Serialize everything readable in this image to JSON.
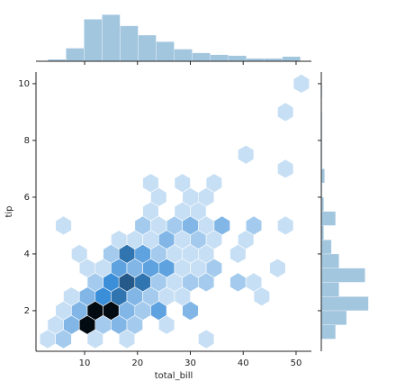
{
  "chart_data": [
    {
      "type": "hexbin",
      "xlabel": "total_bill",
      "ylabel": "tip",
      "xlim": [
        0.8,
        52.9
      ],
      "ylim": [
        0.57,
        10.41
      ],
      "xticks": [
        10,
        20,
        30,
        40,
        50
      ],
      "yticks": [
        2,
        4,
        6,
        8,
        10
      ],
      "colors": [
        "#eaf3fb",
        "#3b8ed8",
        "#020a12"
      ],
      "x": [
        51,
        48,
        40.5,
        48,
        22.5,
        28.5,
        34.5,
        24,
        30,
        33,
        22.5,
        28.5,
        31.5,
        6,
        21,
        24,
        27,
        30,
        33,
        36,
        42,
        48,
        16.5,
        19.5,
        22.5,
        25.5,
        28.5,
        31.5,
        34.5,
        40.5,
        9,
        15,
        18,
        21,
        24,
        27,
        30,
        33,
        39,
        10.5,
        13.5,
        16.5,
        19.5,
        22.5,
        25.5,
        28.5,
        31.5,
        34.5,
        46.5,
        12,
        15,
        18,
        21,
        24,
        27,
        30,
        33,
        39,
        42,
        7.5,
        10.5,
        13.5,
        16.5,
        19.5,
        22.5,
        25.5,
        28.5,
        43.5,
        6,
        9,
        12,
        15,
        18,
        21,
        24,
        30,
        4.5,
        7.5,
        10.5,
        13.5,
        16.5,
        19.5,
        25.5,
        3,
        6,
        12,
        18,
        33
      ],
      "y": [
        10,
        9,
        7.5,
        7,
        6.5,
        6.5,
        6.5,
        6,
        6,
        6,
        5.5,
        5.5,
        5.5,
        5,
        5,
        5,
        5,
        5,
        5,
        5,
        5,
        5,
        4.5,
        4.5,
        4.5,
        4.5,
        4.5,
        4.5,
        4.5,
        4.5,
        4,
        4,
        4,
        4,
        4,
        4,
        4,
        4,
        4,
        3.5,
        3.5,
        3.5,
        3.5,
        3.5,
        3.5,
        3.5,
        3.5,
        3.5,
        3.5,
        3,
        3,
        3,
        3,
        3,
        3,
        3,
        3,
        3,
        3,
        2.5,
        2.5,
        2.5,
        2.5,
        2.5,
        2.5,
        2.5,
        2.5,
        2.5,
        2,
        2,
        2,
        2,
        2,
        2,
        2,
        2,
        1.5,
        1.5,
        1.5,
        1.5,
        1.5,
        1.5,
        1.5,
        1,
        1,
        1,
        1,
        1
      ],
      "values": [
        1,
        1,
        1,
        1,
        1,
        1,
        1,
        1,
        1,
        1,
        1,
        1,
        1,
        1,
        2,
        1,
        2,
        3,
        1,
        3,
        2,
        1,
        1,
        1,
        1,
        3,
        1,
        2,
        1,
        1,
        1,
        2,
        6,
        4,
        2,
        1,
        1,
        1,
        1,
        1,
        1,
        4,
        3,
        4,
        4,
        1,
        1,
        2,
        1,
        2,
        5,
        7,
        6,
        2,
        1,
        2,
        2,
        2,
        1,
        1,
        3,
        5,
        6,
        3,
        2,
        1,
        1,
        1,
        1,
        3,
        10,
        10,
        3,
        2,
        4,
        3,
        1,
        3,
        10,
        2,
        3,
        2,
        1,
        1,
        2,
        1,
        1,
        1
      ]
    },
    {
      "type": "histogram",
      "orientation": "vertical",
      "color": "#a3c6df",
      "bins": [
        3.07,
        6.48,
        9.89,
        13.3,
        16.71,
        20.12,
        23.53,
        26.94,
        30.35,
        33.76,
        37.17,
        40.58,
        43.99,
        47.4,
        50.81
      ],
      "values": [
        2,
        14,
        45,
        50,
        38,
        28,
        21,
        13,
        9,
        7,
        6,
        3,
        3,
        5
      ],
      "ylim": [
        0,
        56
      ]
    },
    {
      "type": "histogram",
      "orientation": "horizontal",
      "color": "#a3c6df",
      "bins": [
        1,
        1.5,
        2,
        2.5,
        3,
        3.5,
        4,
        4.5,
        5,
        5.5,
        6,
        6.5,
        7,
        7.5,
        8,
        8.5,
        9,
        9.5,
        10
      ],
      "values": [
        17,
        30,
        56,
        21,
        52,
        21,
        12,
        3,
        17,
        3,
        1,
        4,
        1,
        1,
        1,
        1,
        0,
        1
      ],
      "xlim": [
        0,
        62
      ]
    }
  ]
}
